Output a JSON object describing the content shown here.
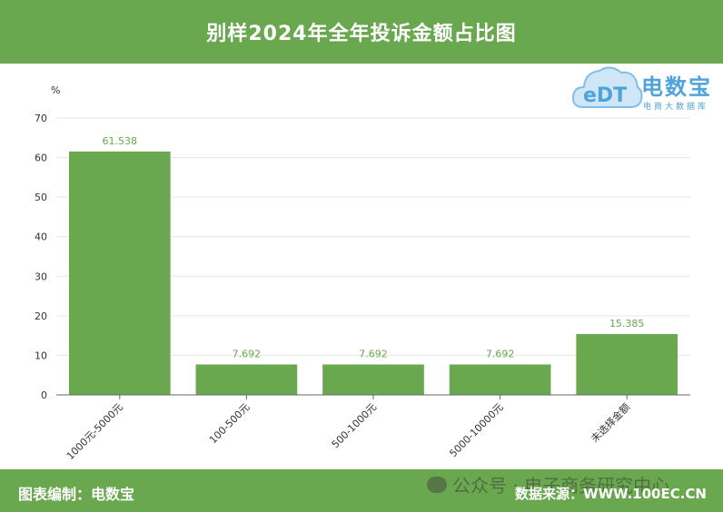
{
  "header": {
    "title": "别样2024年全年投诉金额占比图"
  },
  "logo": {
    "name": "电数宝",
    "subtitle": "电商大数据库",
    "mark": "eDT"
  },
  "footer": {
    "credit": "图表编制：电数宝",
    "source": "数据来源：WWW.100EC.CN",
    "watermark": "公众号 · 电子商务研究中心"
  },
  "colors": {
    "bar": "#6aa84f",
    "header_bg": "#6aa84f",
    "logo": "#4fa3dd"
  },
  "chart_data": {
    "type": "bar",
    "title": "别样2024年全年投诉金额占比图",
    "ylabel": "%",
    "ylim": [
      0,
      70
    ],
    "yticks": [
      0,
      10,
      20,
      30,
      40,
      50,
      60,
      70
    ],
    "categories": [
      "1000元-5000元",
      "100-500元",
      "500-1000元",
      "5000-10000元",
      "未选择金额"
    ],
    "values": [
      61.538,
      7.692,
      7.692,
      7.692,
      15.385
    ],
    "value_labels": [
      "61.538",
      "7.692",
      "7.692",
      "7.692",
      "15.385"
    ],
    "grid": true,
    "legend": "none"
  }
}
